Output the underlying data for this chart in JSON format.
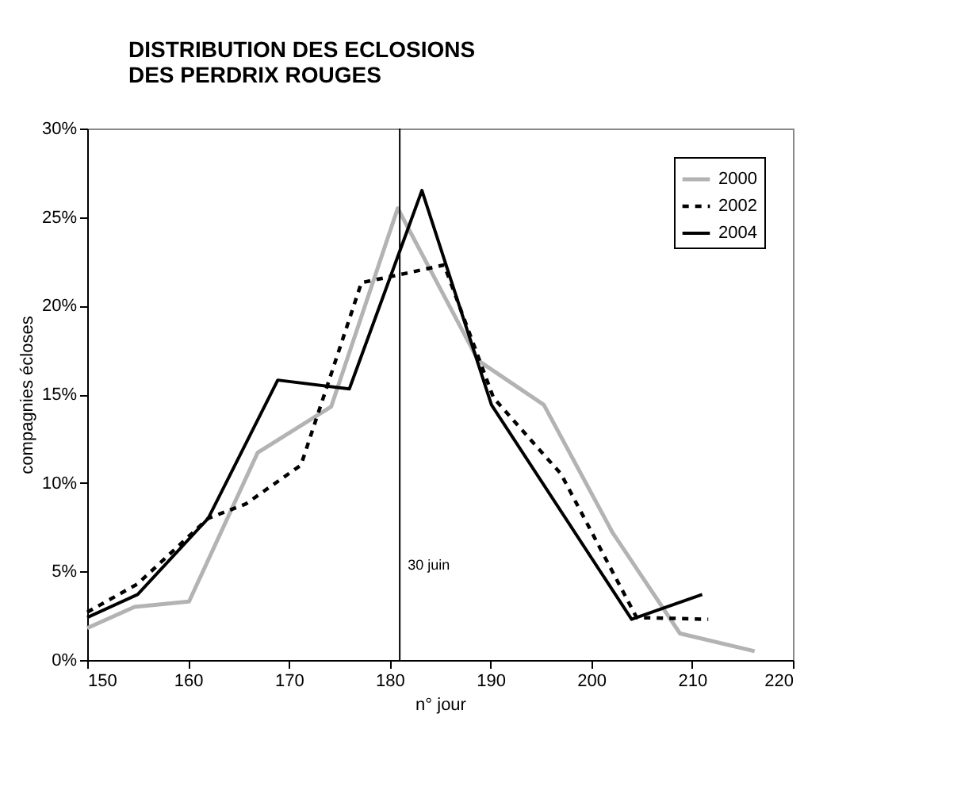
{
  "chart_data": {
    "type": "line",
    "title": [
      "DISTRIBUTION DES ECLOSIONS",
      "DES PERDRIX ROUGES"
    ],
    "xlabel": "n° jour",
    "ylabel": "compagnies écloses",
    "series": [
      {
        "name": "2000",
        "color": "#b3b3b3",
        "line_style": "solid",
        "x": [
          150,
          154.7,
          160.1,
          166.9,
          174.2,
          180.8,
          188.8,
          195.3,
          202.1,
          208.8,
          216.2
        ],
        "values": [
          1.8,
          3.0,
          3.3,
          11.7,
          14.3,
          25.5,
          16.9,
          14.4,
          7.2,
          1.5,
          0.5
        ]
      },
      {
        "name": "2002",
        "color": "#000000",
        "line_style": "dashed",
        "x": [
          150,
          155,
          162,
          165.7,
          171.2,
          177.2,
          181.4,
          185.4,
          190.3,
          197,
          204.5,
          211.6
        ],
        "values": [
          2.7,
          4.3,
          8.0,
          8.8,
          11.0,
          21.3,
          21.8,
          22.3,
          14.8,
          10.5,
          2.4,
          2.3
        ]
      },
      {
        "name": "2004",
        "color": "#000000",
        "line_style": "solid",
        "x": [
          150,
          155,
          162,
          168.9,
          176,
          183.2,
          190.1,
          204,
          211
        ],
        "values": [
          2.4,
          3.7,
          8.0,
          15.8,
          15.3,
          26.5,
          14.4,
          2.3,
          3.7
        ]
      }
    ],
    "xlim": [
      150,
      220
    ],
    "xticks": [
      150,
      160,
      170,
      180,
      190,
      200,
      210,
      220
    ],
    "ylim": [
      0,
      30
    ],
    "yticks": [
      {
        "value": 0,
        "label": "0%"
      },
      {
        "value": 5,
        "label": "5%"
      },
      {
        "value": 10,
        "label": "10%"
      },
      {
        "value": 15,
        "label": "15%"
      },
      {
        "value": 20,
        "label": "20%"
      },
      {
        "value": 25,
        "label": "25%"
      },
      {
        "value": 30,
        "label": "30%"
      }
    ],
    "ref_lines": [
      {
        "axis": "x",
        "value": 181,
        "label": "30 juin",
        "color": "#000000"
      }
    ],
    "grid": false,
    "legend": "top right",
    "marker": "none"
  }
}
